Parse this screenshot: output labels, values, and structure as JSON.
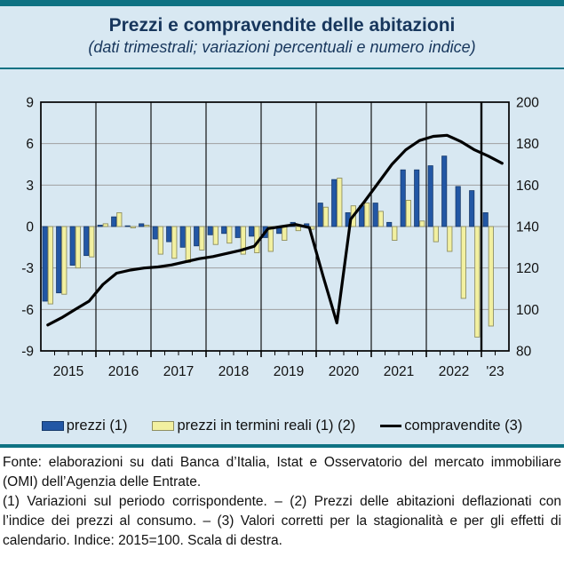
{
  "header": {
    "title": "Prezzi e compravendite delle abitazioni",
    "subtitle": "(dati trimestrali; variazioni percentuali e numero indice)"
  },
  "footer": {
    "source": "Fonte: elaborazioni su dati Banca d’Italia, Istat e Osservatorio del mercato immobiliare (OMI) dell’Agenzia delle Entrate.",
    "notes": "(1) Variazioni sul periodo corrispondente. – (2) Prezzi delle abitazioni deflazionati con l’indice dei prezzi al consumo. – (3) Valori corretti per la stagionalità e per gli effetti di calendario. Indice: 2015=100. Scala di destra."
  },
  "colors": {
    "accent_teal": "#0e7283",
    "panel_bg": "#d8e8f2",
    "title_navy": "#17365c",
    "bar_blue": "#2257a5",
    "bar_blue_border": "#16396b",
    "bar_yellow": "#f2f0a0",
    "bar_yellow_border": "#8f8f62",
    "line_black": "#000000",
    "gridline_gray": "#9f9f9f"
  },
  "chart_data": {
    "type": "combo",
    "categories": [
      "2015Q1",
      "2015Q2",
      "2015Q3",
      "2015Q4",
      "2016Q1",
      "2016Q2",
      "2016Q3",
      "2016Q4",
      "2017Q1",
      "2017Q2",
      "2017Q3",
      "2017Q4",
      "2018Q1",
      "2018Q2",
      "2018Q3",
      "2018Q4",
      "2019Q1",
      "2019Q2",
      "2019Q3",
      "2019Q4",
      "2020Q1",
      "2020Q2",
      "2020Q3",
      "2020Q4",
      "2021Q1",
      "2021Q2",
      "2021Q3",
      "2021Q4",
      "2022Q1",
      "2022Q2",
      "2022Q3",
      "2022Q4",
      "2023Q1",
      "2023Q2"
    ],
    "year_labels": [
      "2015",
      "2016",
      "2017",
      "2018",
      "2019",
      "2020",
      "2021",
      "2022",
      "'23"
    ],
    "left_axis": {
      "min": -9,
      "max": 9,
      "ticks": [
        9,
        6,
        3,
        0,
        -3,
        -6,
        -9
      ],
      "unit": "variazioni percentuali"
    },
    "right_axis": {
      "min": 80,
      "max": 200,
      "ticks": [
        200,
        180,
        160,
        140,
        120,
        100,
        80
      ],
      "unit": "numero indice, 2015=100"
    },
    "grid": true,
    "legend_position": "bottom",
    "series": [
      {
        "name": "prezzi (1)",
        "type": "bar",
        "axis": "left",
        "color": "#2257a5",
        "values": [
          -5.4,
          -4.8,
          -2.8,
          -2.1,
          0.1,
          0.7,
          0.0,
          0.2,
          -0.9,
          -1.1,
          -1.5,
          -1.4,
          -0.6,
          -0.5,
          -0.8,
          -0.7,
          -0.8,
          -0.5,
          0.3,
          0.2,
          1.7,
          3.4,
          1.0,
          1.5,
          1.7,
          0.3,
          4.1,
          4.1,
          4.4,
          5.1,
          2.9,
          2.6,
          1.0
        ]
      },
      {
        "name": "prezzi in termini reali (1) (2)",
        "type": "bar",
        "axis": "left",
        "color": "#f2f0a0",
        "values": [
          -5.6,
          -4.9,
          -3.0,
          -2.2,
          0.2,
          1.0,
          -0.1,
          0.1,
          -2.0,
          -2.3,
          -2.6,
          -1.7,
          -1.3,
          -1.2,
          -2.0,
          -1.9,
          -1.8,
          -1.0,
          -0.3,
          -0.2,
          1.4,
          3.5,
          1.5,
          1.7,
          1.1,
          -1.0,
          1.9,
          0.4,
          -1.1,
          -1.8,
          -5.2,
          -8.0,
          -7.2
        ]
      },
      {
        "name": "compravendite (3)",
        "type": "line",
        "axis": "right",
        "color": "#000000",
        "values": [
          92.5,
          96,
          100,
          104,
          112,
          117.5,
          119,
          120,
          120.5,
          121.5,
          123,
          124.5,
          125.5,
          127,
          128.5,
          130.5,
          139,
          140,
          141,
          139.5,
          116,
          93.5,
          143.5,
          152,
          161,
          170,
          177,
          181.5,
          183.5,
          184,
          181,
          177,
          174,
          170.5
        ]
      }
    ]
  }
}
